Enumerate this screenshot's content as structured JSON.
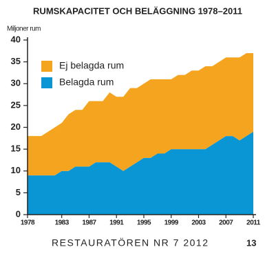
{
  "chart_data": {
    "type": "stacked-area",
    "title": "RUMSKAPACITET OCH BELÄGGNING 1978–2011",
    "y_label": "Miljoner rum",
    "x": [
      1978,
      1979,
      1980,
      1981,
      1982,
      1983,
      1984,
      1985,
      1986,
      1987,
      1988,
      1989,
      1990,
      1991,
      1992,
      1993,
      1994,
      1995,
      1996,
      1997,
      1998,
      1999,
      2000,
      2001,
      2002,
      2003,
      2004,
      2005,
      2006,
      2007,
      2008,
      2009,
      2010,
      2011
    ],
    "xlim": [
      1978,
      2011
    ],
    "xticks": [
      1978,
      1983,
      1987,
      1991,
      1995,
      1999,
      2003,
      2007,
      2011
    ],
    "ylim": [
      0,
      40
    ],
    "yticks": [
      0,
      5,
      10,
      15,
      20,
      25,
      30,
      35,
      40
    ],
    "series": [
      {
        "name": "Belagda rum",
        "color": "#0a96d4",
        "values": [
          9,
          9,
          9,
          9,
          9,
          10,
          10,
          11,
          11,
          11,
          12,
          12,
          12,
          11,
          10,
          11,
          12,
          13,
          13,
          14,
          14,
          15,
          15,
          15,
          15,
          15,
          15,
          16,
          17,
          18,
          18,
          17,
          18,
          19
        ]
      },
      {
        "name": "Ej belagda rum",
        "color": "#f5a41f",
        "values": [
          9,
          9,
          9,
          10,
          11,
          11,
          13,
          13,
          13,
          15,
          14,
          14,
          16,
          16,
          17,
          18,
          17,
          17,
          18,
          17,
          17,
          16,
          17,
          17,
          18,
          18,
          19,
          18,
          18,
          18,
          18,
          19,
          19,
          18
        ]
      }
    ],
    "grid": false,
    "legend": "top-left"
  },
  "footer": {
    "text": "RESTAURATÖREN  NR 7  2012",
    "page": "13"
  }
}
